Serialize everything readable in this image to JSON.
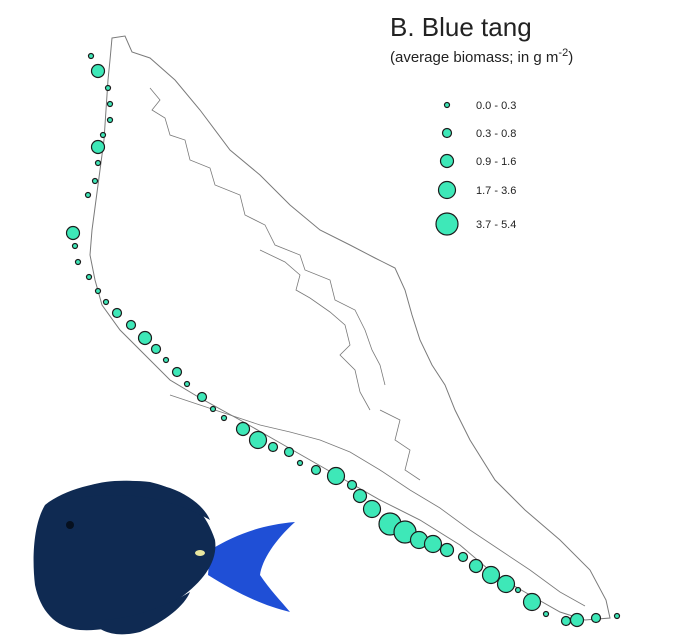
{
  "title": "B. Blue tang",
  "subtitle_text": "(average biomass; in g m",
  "subtitle_exponent": "-2",
  "subtitle_close": ")",
  "colors": {
    "marker_fill": "#3ee8b8",
    "marker_stroke": "#1c1c1c",
    "coastline": "#7a7a7a",
    "fish_body": "#0f2a52",
    "fish_fin": "#1f4fd6"
  },
  "legend": [
    {
      "label": "0.0 - 0.3"
    },
    {
      "label": "0.3 - 0.8"
    },
    {
      "label": "0.9 - 1.6"
    },
    {
      "label": "1.7 - 3.6"
    },
    {
      "label": "3.7 - 5.4"
    }
  ],
  "illustration": "blue-tang-fish-photo"
}
